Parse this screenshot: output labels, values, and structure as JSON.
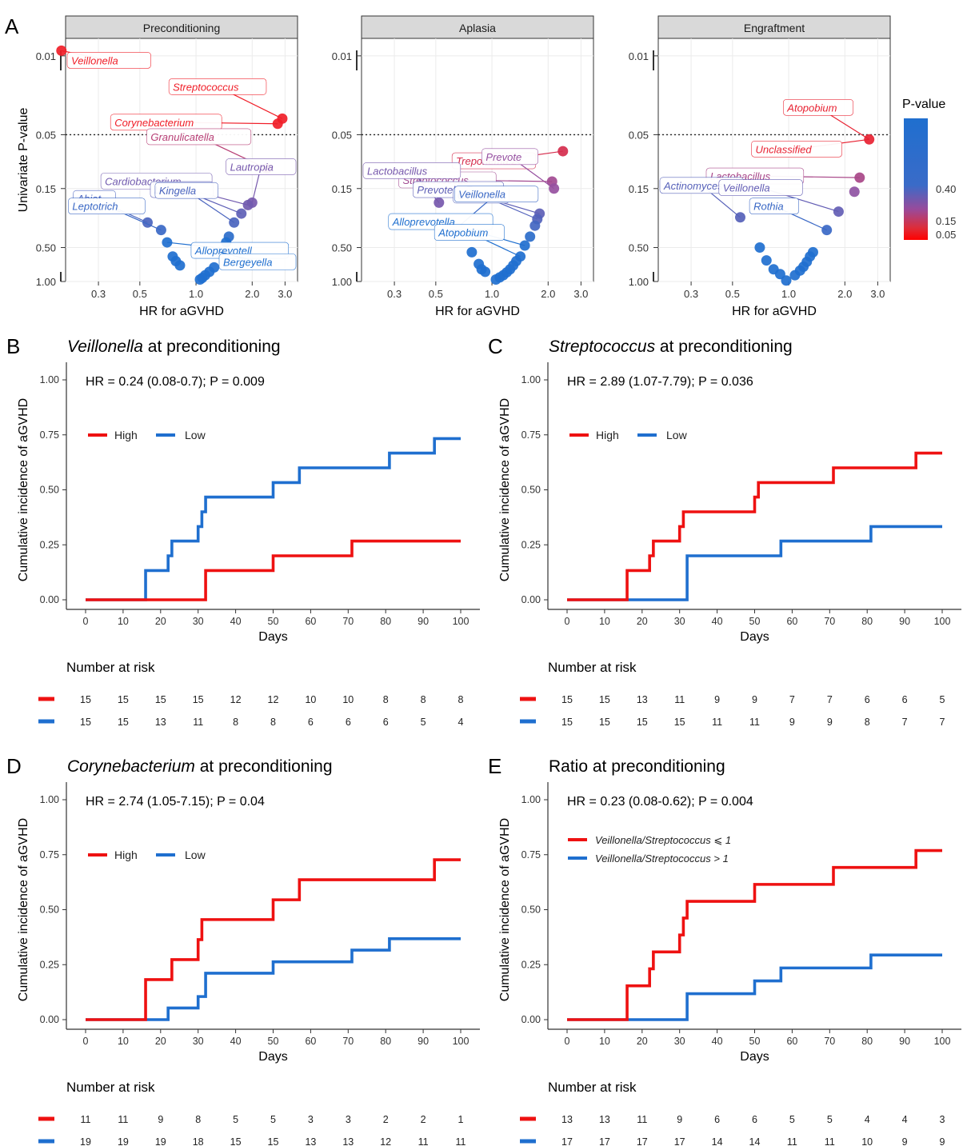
{
  "figure": {
    "colors": {
      "high": "#ee1111",
      "low": "#1f6fcf",
      "grid": "#ebebeb",
      "strip": "#d9d9d9"
    },
    "pvalue_legend": {
      "title": "P-value",
      "ticks": [
        "0.40",
        "0.15",
        "0.05"
      ]
    },
    "panel_a": {
      "letter": "A",
      "ylabel": "Univariate P-value",
      "xlabel": "HR for aGVHD",
      "x_ticks": [
        "0.3",
        "0.5",
        "1.0",
        "2.0",
        "3.0"
      ],
      "y_ticks": [
        "0.01",
        "0.05",
        "0.15",
        "0.50",
        "1.00"
      ],
      "threshold": 0.05
    }
  },
  "chart_data": [
    {
      "type": "scatter",
      "panel": "A",
      "facet": "Preconditioning",
      "xlim": [
        0.2,
        3.5
      ],
      "ylim": [
        1.0,
        0.007
      ],
      "x_scale": "log",
      "y_scale": "-log10",
      "points": [
        {
          "x": 0.19,
          "y": 0.009
        },
        {
          "x": 2.9,
          "y": 0.036
        },
        {
          "x": 2.74,
          "y": 0.04
        },
        {
          "x": 2.4,
          "y": 0.1
        },
        {
          "x": 2.0,
          "y": 0.2
        },
        {
          "x": 1.9,
          "y": 0.21
        },
        {
          "x": 1.75,
          "y": 0.25
        },
        {
          "x": 1.6,
          "y": 0.3
        },
        {
          "x": 0.55,
          "y": 0.3
        },
        {
          "x": 0.65,
          "y": 0.35
        },
        {
          "x": 1.5,
          "y": 0.4
        },
        {
          "x": 1.45,
          "y": 0.45
        },
        {
          "x": 0.7,
          "y": 0.45
        },
        {
          "x": 1.35,
          "y": 0.55
        },
        {
          "x": 0.75,
          "y": 0.6
        },
        {
          "x": 0.78,
          "y": 0.66
        },
        {
          "x": 0.82,
          "y": 0.72
        },
        {
          "x": 1.25,
          "y": 0.75
        },
        {
          "x": 1.18,
          "y": 0.82
        },
        {
          "x": 1.12,
          "y": 0.88
        },
        {
          "x": 1.08,
          "y": 0.93
        },
        {
          "x": 1.05,
          "y": 0.96
        }
      ],
      "labels": [
        {
          "text": "Veillonella",
          "pt": 0
        },
        {
          "text": "Streptococcus",
          "pt": 1
        },
        {
          "text": "Corynebacterium",
          "pt": 2
        },
        {
          "text": "Granulicatella",
          "pt": 3
        },
        {
          "text": "Cardiobacterium",
          "pt": 5
        },
        {
          "text": "Lactobac",
          "pt": 6
        },
        {
          "text": "Lautropia",
          "pt": 4
        },
        {
          "text": "Abiot",
          "pt": 8
        },
        {
          "text": "Leptotrich",
          "pt": 9
        },
        {
          "text": "Kingella",
          "pt": 7
        },
        {
          "text": "Alloprevotell",
          "pt": 12
        },
        {
          "text": "Bergeyella",
          "pt": 13
        }
      ]
    },
    {
      "type": "scatter",
      "panel": "A",
      "facet": "Aplasia",
      "xlim": [
        0.2,
        3.5
      ],
      "ylim": [
        1.0,
        0.007
      ],
      "x_scale": "log",
      "y_scale": "-log10",
      "points": [
        {
          "x": 2.4,
          "y": 0.07
        },
        {
          "x": 2.1,
          "y": 0.13
        },
        {
          "x": 2.15,
          "y": 0.15
        },
        {
          "x": 0.52,
          "y": 0.2
        },
        {
          "x": 1.8,
          "y": 0.25
        },
        {
          "x": 1.75,
          "y": 0.28
        },
        {
          "x": 1.7,
          "y": 0.32
        },
        {
          "x": 0.63,
          "y": 0.35
        },
        {
          "x": 1.6,
          "y": 0.4
        },
        {
          "x": 1.5,
          "y": 0.48
        },
        {
          "x": 0.78,
          "y": 0.55
        },
        {
          "x": 1.42,
          "y": 0.6
        },
        {
          "x": 1.35,
          "y": 0.66
        },
        {
          "x": 0.85,
          "y": 0.7
        },
        {
          "x": 1.3,
          "y": 0.72
        },
        {
          "x": 0.88,
          "y": 0.78
        },
        {
          "x": 0.92,
          "y": 0.82
        },
        {
          "x": 1.25,
          "y": 0.78
        },
        {
          "x": 1.2,
          "y": 0.83
        },
        {
          "x": 1.15,
          "y": 0.88
        },
        {
          "x": 1.1,
          "y": 0.92
        },
        {
          "x": 1.05,
          "y": 0.96
        }
      ],
      "labels": [
        {
          "text": "Treponema.2",
          "pt": 0
        },
        {
          "text": "Prevote",
          "pt": 2
        },
        {
          "text": "Streptococcus",
          "pt": 1
        },
        {
          "text": "Lactobacillus",
          "pt": 3
        },
        {
          "text": "Prevotella.7",
          "pt": 4
        },
        {
          "text": "Gemella",
          "pt": 5
        },
        {
          "text": "Veillonella",
          "pt": 7
        },
        {
          "text": "Alloprevotella",
          "pt": 9
        },
        {
          "text": "Atopobium",
          "pt": 11
        }
      ]
    },
    {
      "type": "scatter",
      "panel": "A",
      "facet": "Engraftment",
      "xlim": [
        0.2,
        3.5
      ],
      "ylim": [
        1.0,
        0.007
      ],
      "x_scale": "log",
      "y_scale": "-log10",
      "points": [
        {
          "x": 2.7,
          "y": 0.055
        },
        {
          "x": 2.4,
          "y": 0.12
        },
        {
          "x": 2.25,
          "y": 0.16
        },
        {
          "x": 0.55,
          "y": 0.27
        },
        {
          "x": 1.85,
          "y": 0.24
        },
        {
          "x": 1.6,
          "y": 0.35
        },
        {
          "x": 0.7,
          "y": 0.5
        },
        {
          "x": 1.35,
          "y": 0.55
        },
        {
          "x": 1.3,
          "y": 0.6
        },
        {
          "x": 0.76,
          "y": 0.65
        },
        {
          "x": 1.25,
          "y": 0.67
        },
        {
          "x": 1.2,
          "y": 0.74
        },
        {
          "x": 0.83,
          "y": 0.78
        },
        {
          "x": 1.15,
          "y": 0.8
        },
        {
          "x": 0.9,
          "y": 0.86
        },
        {
          "x": 1.08,
          "y": 0.88
        },
        {
          "x": 0.97,
          "y": 0.98
        }
      ],
      "labels": [
        {
          "text": "Unclassified",
          "pt": 0
        },
        {
          "text": "Atopobium",
          "pt": 0
        },
        {
          "text": "Lactobacillus",
          "pt": 1
        },
        {
          "text": "Actinomyces",
          "pt": 3
        },
        {
          "text": "Veillonella",
          "pt": 4
        },
        {
          "text": "Rothia",
          "pt": 5
        }
      ]
    },
    {
      "type": "line",
      "panel": "B",
      "title_italic": "Veillonella",
      "title_rest": " at preconditioning",
      "annotation": "HR = 0.24 (0.08-0.7); P = 0.009",
      "xlabel": "Days",
      "ylabel": "Cumulative incidence of aGVHD",
      "xlim": [
        0,
        100
      ],
      "ylim": [
        0,
        1
      ],
      "x_ticks": [
        0,
        10,
        20,
        30,
        40,
        50,
        60,
        70,
        80,
        90,
        100
      ],
      "y_ticks": [
        "0.00",
        "0.25",
        "0.50",
        "0.75",
        "1.00"
      ],
      "legend": [
        "High",
        "Low"
      ],
      "legend_italic": false,
      "series": [
        {
          "name": "High",
          "color": "red",
          "steps": [
            [
              0,
              0
            ],
            [
              32,
              0.133
            ],
            [
              50,
              0.2
            ],
            [
              71,
              0.267
            ],
            [
              100,
              0.267
            ]
          ]
        },
        {
          "name": "Low",
          "color": "blue",
          "steps": [
            [
              0,
              0
            ],
            [
              16,
              0.133
            ],
            [
              22,
              0.2
            ],
            [
              23,
              0.267
            ],
            [
              30,
              0.333
            ],
            [
              31,
              0.4
            ],
            [
              32,
              0.467
            ],
            [
              50,
              0.533
            ],
            [
              57,
              0.6
            ],
            [
              81,
              0.667
            ],
            [
              93,
              0.733
            ],
            [
              100,
              0.733
            ]
          ]
        }
      ],
      "risk_title": "Number at risk",
      "risk": {
        "High": [
          "15",
          "15",
          "15",
          "15",
          "12",
          "12",
          "10",
          "10",
          "8",
          "8",
          "8"
        ],
        "Low": [
          "15",
          "15",
          "13",
          "11",
          "8",
          "8",
          "6",
          "6",
          "6",
          "5",
          "4"
        ]
      }
    },
    {
      "type": "line",
      "panel": "C",
      "title_italic": "Streptococcus",
      "title_rest": " at preconditioning",
      "annotation": "HR = 2.89 (1.07-7.79); P = 0.036",
      "xlabel": "Days",
      "ylabel": "Cumulative incidence of aGVHD",
      "xlim": [
        0,
        100
      ],
      "ylim": [
        0,
        1
      ],
      "x_ticks": [
        0,
        10,
        20,
        30,
        40,
        50,
        60,
        70,
        80,
        90,
        100
      ],
      "y_ticks": [
        "0.00",
        "0.25",
        "0.50",
        "0.75",
        "1.00"
      ],
      "legend": [
        "High",
        "Low"
      ],
      "legend_italic": false,
      "series": [
        {
          "name": "High",
          "color": "red",
          "steps": [
            [
              0,
              0
            ],
            [
              16,
              0.133
            ],
            [
              22,
              0.2
            ],
            [
              23,
              0.267
            ],
            [
              30,
              0.333
            ],
            [
              31,
              0.4
            ],
            [
              50,
              0.467
            ],
            [
              51,
              0.533
            ],
            [
              71,
              0.6
            ],
            [
              93,
              0.667
            ],
            [
              100,
              0.667
            ]
          ]
        },
        {
          "name": "Low",
          "color": "blue",
          "steps": [
            [
              0,
              0
            ],
            [
              32,
              0.2
            ],
            [
              57,
              0.267
            ],
            [
              81,
              0.333
            ],
            [
              100,
              0.333
            ]
          ]
        }
      ],
      "risk_title": "Number at risk",
      "risk": {
        "High": [
          "15",
          "15",
          "13",
          "11",
          "9",
          "9",
          "7",
          "7",
          "6",
          "6",
          "5"
        ],
        "Low": [
          "15",
          "15",
          "15",
          "15",
          "11",
          "11",
          "9",
          "9",
          "8",
          "7",
          "7"
        ]
      }
    },
    {
      "type": "line",
      "panel": "D",
      "title_italic": "Corynebacterium",
      "title_rest": " at preconditioning",
      "annotation": "HR = 2.74 (1.05-7.15); P = 0.04",
      "xlabel": "Days",
      "ylabel": "Cumulative incidence of aGVHD",
      "xlim": [
        0,
        100
      ],
      "ylim": [
        0,
        1
      ],
      "x_ticks": [
        0,
        10,
        20,
        30,
        40,
        50,
        60,
        70,
        80,
        90,
        100
      ],
      "y_ticks": [
        "0.00",
        "0.25",
        "0.50",
        "0.75",
        "1.00"
      ],
      "legend": [
        "High",
        "Low"
      ],
      "legend_italic": false,
      "series": [
        {
          "name": "High",
          "color": "red",
          "steps": [
            [
              0,
              0
            ],
            [
              16,
              0.182
            ],
            [
              23,
              0.273
            ],
            [
              30,
              0.364
            ],
            [
              31,
              0.455
            ],
            [
              50,
              0.545
            ],
            [
              57,
              0.636
            ],
            [
              93,
              0.727
            ],
            [
              100,
              0.727
            ]
          ]
        },
        {
          "name": "Low",
          "color": "blue",
          "steps": [
            [
              0,
              0
            ],
            [
              22,
              0.053
            ],
            [
              30,
              0.105
            ],
            [
              32,
              0.211
            ],
            [
              50,
              0.263
            ],
            [
              71,
              0.316
            ],
            [
              81,
              0.368
            ],
            [
              100,
              0.368
            ]
          ]
        }
      ],
      "risk_title": "Number at risk",
      "risk": {
        "High": [
          "11",
          "11",
          "9",
          "8",
          "5",
          "5",
          "3",
          "3",
          "2",
          "2",
          "1"
        ],
        "Low": [
          "19",
          "19",
          "19",
          "18",
          "15",
          "15",
          "13",
          "13",
          "12",
          "11",
          "11"
        ]
      }
    },
    {
      "type": "line",
      "panel": "E",
      "title_italic": "",
      "title_rest": "Ratio at preconditioning",
      "annotation": "HR = 0.23 (0.08-0.62); P = 0.004",
      "xlabel": "Days",
      "ylabel": "Cumulative incidence of aGVHD",
      "xlim": [
        0,
        100
      ],
      "ylim": [
        0,
        1
      ],
      "x_ticks": [
        0,
        10,
        20,
        30,
        40,
        50,
        60,
        70,
        80,
        90,
        100
      ],
      "y_ticks": [
        "0.00",
        "0.25",
        "0.50",
        "0.75",
        "1.00"
      ],
      "legend": [
        "Veillonella/Streptococcus ⩽ 1",
        "Veillonella/Streptococcus > 1"
      ],
      "legend_italic": true,
      "series": [
        {
          "name": "Veillonella/Streptococcus ⩽ 1",
          "color": "red",
          "steps": [
            [
              0,
              0
            ],
            [
              16,
              0.154
            ],
            [
              22,
              0.231
            ],
            [
              23,
              0.308
            ],
            [
              30,
              0.385
            ],
            [
              31,
              0.462
            ],
            [
              32,
              0.538
            ],
            [
              50,
              0.615
            ],
            [
              71,
              0.692
            ],
            [
              93,
              0.769
            ],
            [
              100,
              0.769
            ]
          ]
        },
        {
          "name": "Veillonella/Streptococcus > 1",
          "color": "blue",
          "steps": [
            [
              0,
              0
            ],
            [
              32,
              0.118
            ],
            [
              50,
              0.176
            ],
            [
              57,
              0.235
            ],
            [
              81,
              0.294
            ],
            [
              100,
              0.294
            ]
          ]
        }
      ],
      "risk_title": "Number at risk",
      "risk": {
        "High": [
          "13",
          "13",
          "11",
          "9",
          "6",
          "6",
          "5",
          "5",
          "4",
          "4",
          "3"
        ],
        "Low": [
          "17",
          "17",
          "17",
          "17",
          "14",
          "14",
          "11",
          "11",
          "10",
          "9",
          "9"
        ]
      }
    }
  ]
}
